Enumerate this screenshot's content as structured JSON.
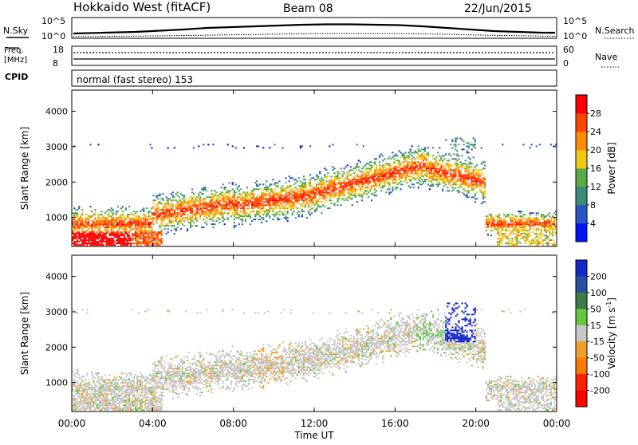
{
  "header": {
    "site": "Hokkaido West (fitACF)",
    "beam": "Beam 08",
    "date": "22/Jun/2015"
  },
  "noise_panel": {
    "left_label": "N.Sky",
    "right_label": "N.Search",
    "left_ticks": [
      "10^5",
      "10^0"
    ],
    "right_ticks": [
      "10^5",
      "10^0"
    ]
  },
  "freq_panel": {
    "left_label_line1": "Freq.",
    "left_label_line2": "[MHz]",
    "left_ticks": [
      "18",
      "8"
    ],
    "right_label": "Nave",
    "right_ticks": [
      "60",
      "0"
    ]
  },
  "cpid_panel": {
    "label": "CPID",
    "text": "normal (fast stereo) 153"
  },
  "chart_data": [
    {
      "type": "heatmap",
      "name": "power",
      "ylabel": "Slant Range [km]",
      "xlabel": "",
      "yticks": [
        1000,
        2000,
        3000,
        4000
      ],
      "ylim": [
        180,
        4600
      ],
      "colorbar": {
        "label": "Power [dB]",
        "ticks": [
          "4",
          "8",
          "12",
          "16",
          "20",
          "24",
          "28"
        ],
        "colors": [
          "#0014ff",
          "#2a55c8",
          "#3c8c78",
          "#5aaa46",
          "#f0c814",
          "#ff8c00",
          "#ff4400",
          "#ff0000"
        ]
      },
      "description_bands": [
        {
          "x": [
            0,
            2.5
          ],
          "range": [
            200,
            500
          ],
          "level": "high"
        },
        {
          "x": [
            0,
            4.5
          ],
          "range": [
            500,
            1200
          ],
          "level": "medium"
        },
        {
          "x": [
            5,
            12
          ],
          "range": [
            900,
            2000
          ],
          "level": "medium-high"
        },
        {
          "x": [
            12,
            18
          ],
          "range": [
            1400,
            2600
          ],
          "level": "high"
        },
        {
          "x": [
            18,
            20.5
          ],
          "range": [
            1900,
            3200
          ],
          "level": "medium"
        },
        {
          "x": [
            20.5,
            24
          ],
          "range": [
            300,
            1000
          ],
          "level": "low"
        }
      ]
    },
    {
      "type": "heatmap",
      "name": "velocity",
      "ylabel": "Slant Range [km]",
      "xlabel": "Time UT",
      "yticks": [
        1000,
        2000,
        3000,
        4000
      ],
      "xticks": [
        "00:00",
        "04:00",
        "08:00",
        "12:00",
        "16:00",
        "20:00",
        "00:00"
      ],
      "ylim": [
        180,
        4600
      ],
      "colorbar": {
        "label": "Velocity [m s",
        "label_sup": "-1",
        "label_end": "]",
        "ticks": [
          "200",
          "100",
          "50",
          "15",
          "-15",
          "-50",
          "-100",
          "-200"
        ],
        "colors": [
          "#1428c8",
          "#2850a0",
          "#3c7c46",
          "#64c83c",
          "#c8c8c8",
          "#f0a028",
          "#ff7800",
          "#ff2000",
          "#ff0000"
        ]
      }
    }
  ]
}
